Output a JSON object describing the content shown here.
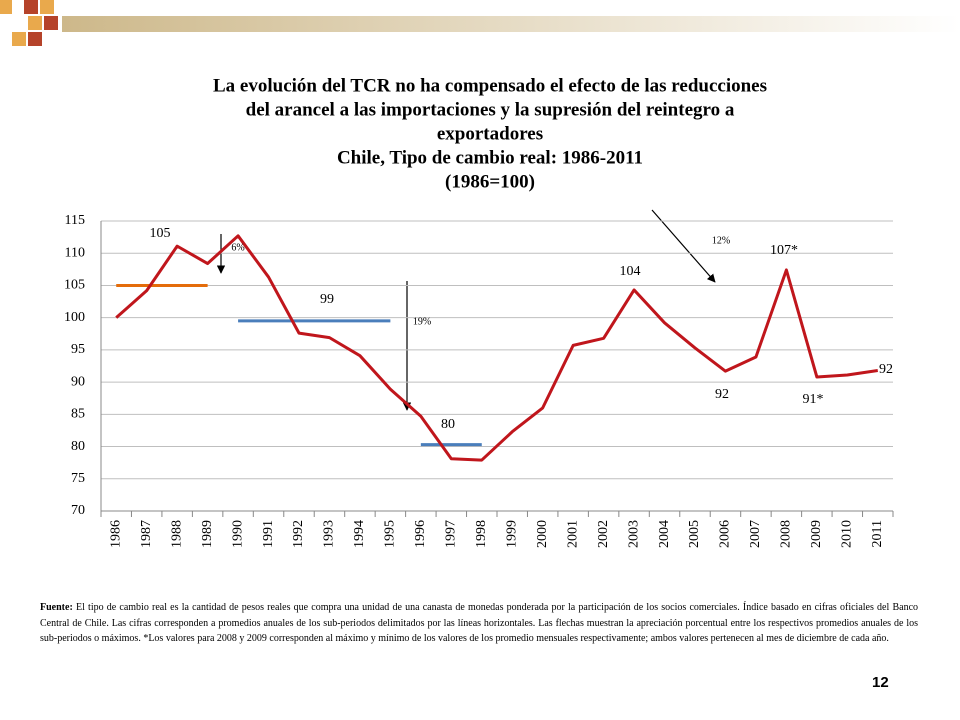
{
  "chart_data": {
    "type": "line",
    "title": [
      "La evolución del TCR no ha compensado el efecto de las reducciones",
      "del arancel a las importaciones y la supresión del reintegro a",
      "exportadores"
    ],
    "subtitle": [
      "Chile, Tipo de cambio real: 1986-2011",
      "(1986=100)"
    ],
    "categories": [
      "1986",
      "1987",
      "1988",
      "1989",
      "1990",
      "1991",
      "1992",
      "1993",
      "1994",
      "1995",
      "1996",
      "1997",
      "1998",
      "1999",
      "2000",
      "2001",
      "2002",
      "2003",
      "2004",
      "2005",
      "2006",
      "2007",
      "2008",
      "2009",
      "2010",
      "2011"
    ],
    "series": [
      {
        "color": "#c0161c",
        "values": [
          100,
          104.2,
          111.1,
          108.4,
          112.7,
          106.3,
          97.6,
          96.9,
          94.1,
          88.9,
          84.7,
          78.1,
          77.9,
          82.3,
          86.0,
          95.7,
          96.8,
          104.3,
          99.2,
          95.3,
          91.7,
          93.9,
          107.4,
          90.8,
          91.1,
          91.8
        ]
      }
    ],
    "reference_lines": [
      {
        "value": 105,
        "from": "1986",
        "to": "1989",
        "color": "#e46c0a"
      },
      {
        "value": 99.5,
        "from": "1990",
        "to": "1995",
        "color": "#4a7ebb"
      },
      {
        "value": 80.3,
        "from": "1996",
        "to": "1998",
        "color": "#4a7ebb"
      }
    ],
    "annotations": [
      "105",
      "6%",
      "99",
      "19%",
      "80",
      "104",
      "12%",
      "107*",
      "92",
      "91*",
      "92"
    ],
    "ylim": [
      70,
      115
    ],
    "yticks": [
      70,
      75,
      80,
      85,
      90,
      95,
      100,
      105,
      110,
      115
    ],
    "grid": true
  },
  "footnote": {
    "label": "Fuente:",
    "text": "El tipo de cambio real es la cantidad de pesos reales que compra una unidad de una canasta de monedas ponderada por la participación de los socios comerciales. Índice basado en cifras oficiales del Banco Central de Chile. Las cifras corresponden a promedios anuales de los sub-periodos delimitados por las líneas horizontales. Las flechas muestran la apreciación porcentual entre los respectivos promedios anuales de los sub-periodos o máximos. *Los valores para 2008 y 2009 corresponden al máximo y mínimo de los valores de los promedio mensuales respectivamente; ambos valores pertenecen al mes de diciembre de cada año."
  },
  "page_number": "12"
}
